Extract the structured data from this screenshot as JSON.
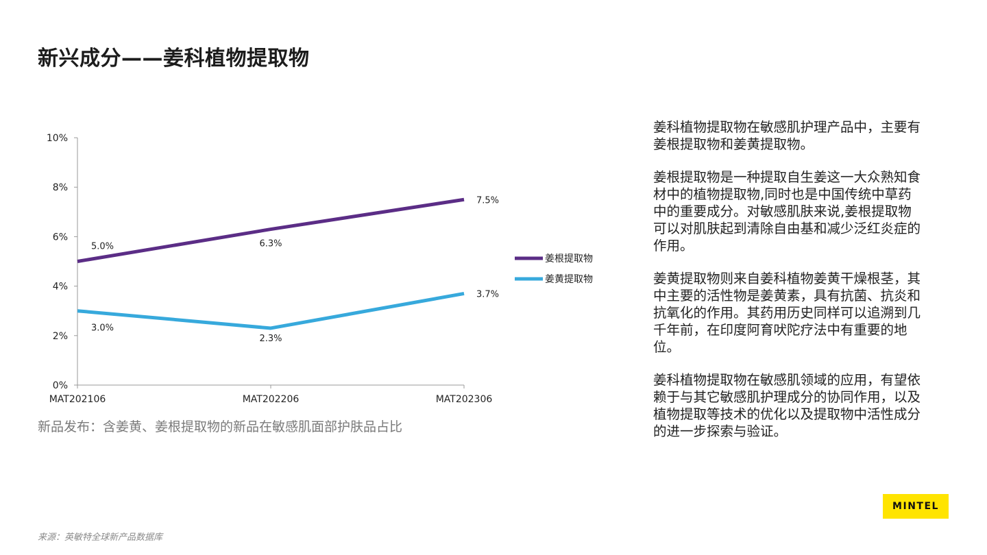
{
  "title": "新兴成分——姜科植物提取物",
  "caption": "新品发布：含姜黄、姜根提取物的新品在敏感肌面部护肤品占比",
  "source": "来源：英敏特全球新产品数据库",
  "logo": "MINTEL",
  "paragraphs": [
    "姜科植物提取物在敏感肌护理产品中，主要有姜根提取物和姜黄提取物。",
    "姜根提取物是一种提取自生姜这一大众熟知食材中的植物提取物,同时也是中国传统中草药中的重要成分。对敏感肌肤来说,姜根提取物可以对肌肤起到清除自由基和减少泛红炎症的作用。",
    "姜黄提取物则来自姜科植物姜黄干燥根茎，其中主要的活性物是姜黄素，具有抗菌、抗炎和抗氧化的作用。其药用历史同样可以追溯到几千年前，在印度阿育吠陀疗法中有重要的地位。",
    "姜科植物提取物在敏感肌领域的应用，有望依赖于与其它敏感肌护理成分的协同作用，以及植物提取等技术的优化以及提取物中活性成分的进一步探索与验证。"
  ],
  "chart_data": {
    "type": "line",
    "categories": [
      "MAT202106",
      "MAT202206",
      "MAT202306"
    ],
    "y_ticks": [
      "0%",
      "2%",
      "4%",
      "6%",
      "8%",
      "10%"
    ],
    "ylim": [
      0,
      10
    ],
    "grid": false,
    "legend_position": "right",
    "series": [
      {
        "name": "姜根提取物",
        "values": [
          5.0,
          6.3,
          7.5
        ],
        "labels": [
          "5.0%",
          "6.3%",
          "7.5%"
        ],
        "color": "#5b2d86"
      },
      {
        "name": "姜黄提取物",
        "values": [
          3.0,
          2.3,
          3.7
        ],
        "labels": [
          "3.0%",
          "2.3%",
          "3.7%"
        ],
        "color": "#37a9dc"
      }
    ]
  }
}
